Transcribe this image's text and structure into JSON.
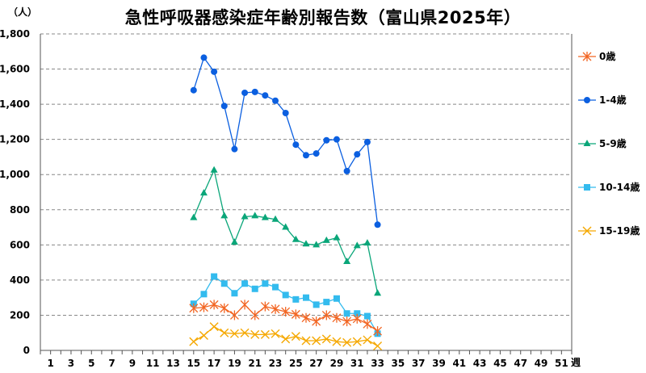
{
  "chart_data": {
    "type": "line",
    "title": "急性呼吸器感染症年齢別報告数（富山県2025年）",
    "ylabel": "（人）",
    "xlabel": "週",
    "ylim": [
      0,
      1800
    ],
    "yticks": [
      0,
      200,
      400,
      600,
      800,
      1000,
      1200,
      1400,
      1600,
      1800
    ],
    "ytick_labels": [
      "0",
      "200",
      "400",
      "600",
      "800",
      "1,000",
      "1,200",
      "1,400",
      "1,600",
      "1,800"
    ],
    "xlim": [
      0,
      52
    ],
    "xticks": [
      1,
      3,
      5,
      7,
      9,
      11,
      13,
      15,
      17,
      19,
      21,
      23,
      25,
      27,
      29,
      31,
      33,
      35,
      37,
      39,
      41,
      43,
      45,
      47,
      49,
      51
    ],
    "grid": true,
    "legend_position": "right",
    "x": [
      15,
      16,
      17,
      18,
      19,
      20,
      21,
      22,
      23,
      24,
      25,
      26,
      27,
      28,
      29,
      30,
      31,
      32,
      33
    ],
    "series": [
      {
        "name": "0歳",
        "color": "#f26522",
        "marker": "asterisk",
        "values": [
          240,
          245,
          260,
          240,
          200,
          260,
          200,
          250,
          235,
          220,
          205,
          185,
          165,
          200,
          185,
          165,
          180,
          150,
          110
        ]
      },
      {
        "name": "1-4歳",
        "color": "#0b5fe0",
        "marker": "circle",
        "values": [
          1480,
          1665,
          1585,
          1390,
          1145,
          1465,
          1470,
          1450,
          1420,
          1350,
          1170,
          1110,
          1120,
          1195,
          1200,
          1020,
          1115,
          1185,
          715
        ]
      },
      {
        "name": "5-9歳",
        "color": "#0aa679",
        "marker": "triangle",
        "values": [
          755,
          895,
          1025,
          765,
          615,
          760,
          765,
          755,
          745,
          700,
          630,
          605,
          600,
          625,
          640,
          505,
          595,
          610,
          325
        ]
      },
      {
        "name": "10-14歳",
        "color": "#33bbee",
        "marker": "square",
        "values": [
          265,
          320,
          420,
          380,
          325,
          380,
          350,
          380,
          360,
          315,
          290,
          300,
          260,
          275,
          295,
          210,
          210,
          195,
          95
        ]
      },
      {
        "name": "15-19歳",
        "color": "#f5a800",
        "marker": "x",
        "values": [
          50,
          85,
          135,
          100,
          95,
          100,
          90,
          90,
          95,
          65,
          80,
          55,
          55,
          65,
          50,
          45,
          50,
          60,
          25
        ]
      }
    ]
  }
}
